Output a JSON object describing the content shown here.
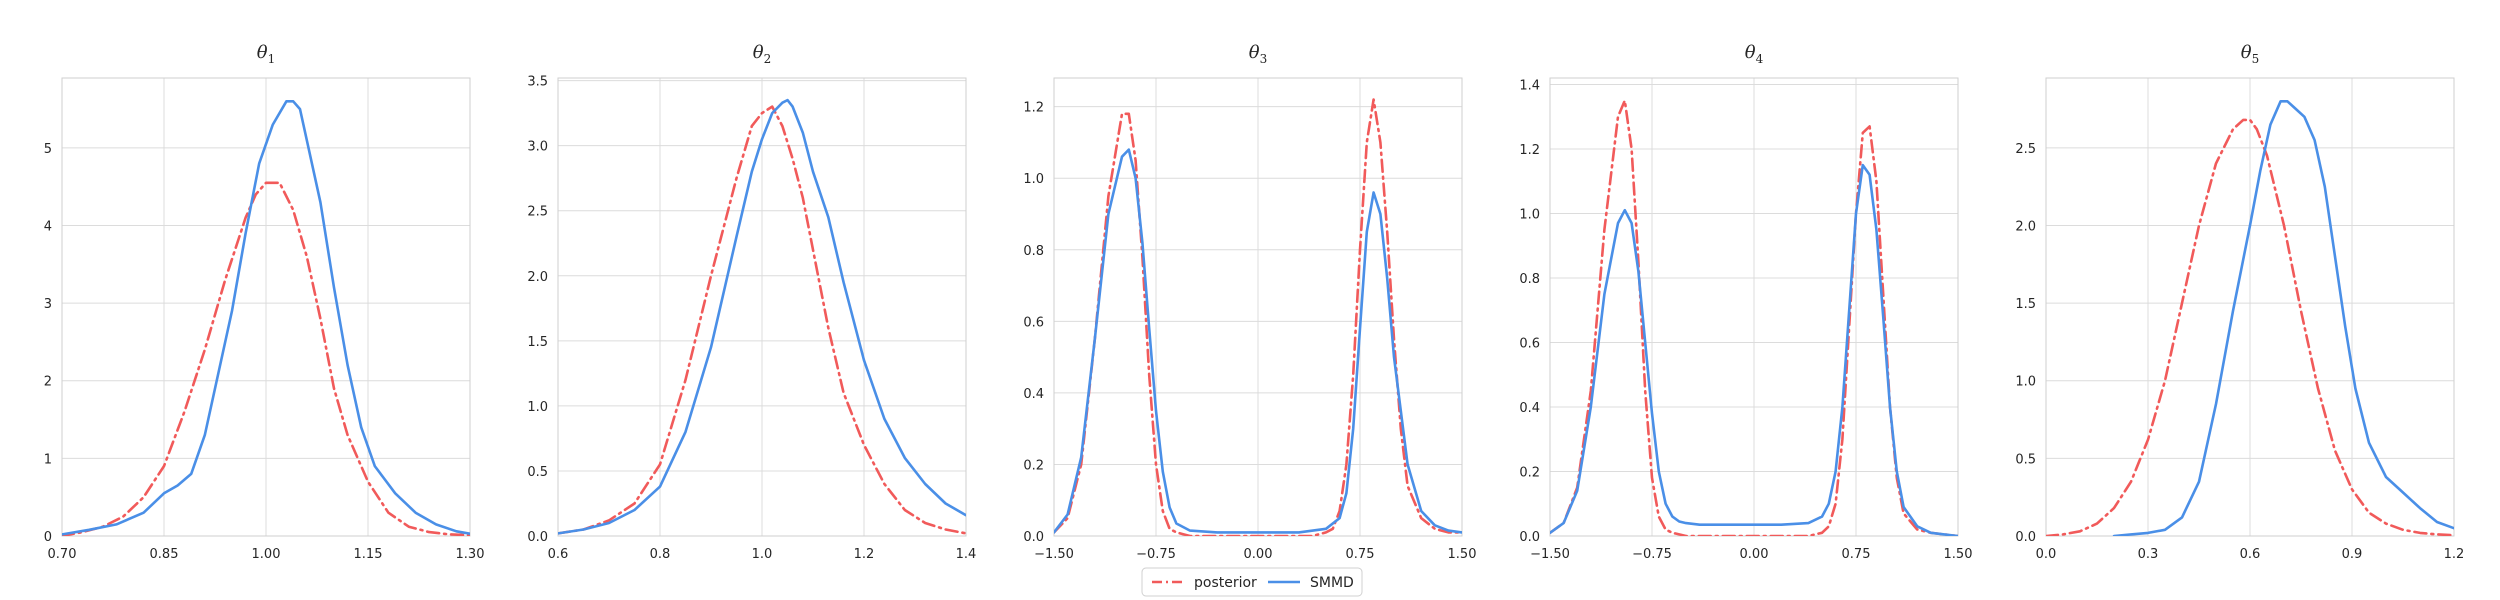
{
  "legend": {
    "position": "bottom-center",
    "entries": [
      "posterior",
      "SMMD"
    ]
  },
  "colors": {
    "posterior": "#f15a5a",
    "SMMD": "#4a8fe7",
    "grid": "#dcdcdc",
    "frame": "#cfcfcf"
  },
  "chart_data": [
    {
      "type": "line",
      "title": "θ",
      "title_sub": "1",
      "grid": true,
      "xlim": [
        0.7,
        1.3
      ],
      "ylim": [
        0,
        5.9
      ],
      "xticks": [
        0.7,
        0.85,
        1.0,
        1.15,
        1.3
      ],
      "xtick_labels": [
        "0.70",
        "0.85",
        "1.00",
        "1.15",
        "1.30"
      ],
      "yticks": [
        0,
        1,
        2,
        3,
        4,
        5
      ],
      "ytick_labels": [
        "0",
        "1",
        "2",
        "3",
        "4",
        "5"
      ],
      "series": [
        {
          "name": "posterior",
          "style": "dashdot",
          "x": [
            0.7,
            0.73,
            0.76,
            0.79,
            0.82,
            0.85,
            0.88,
            0.91,
            0.94,
            0.97,
            0.985,
            1.0,
            1.02,
            1.04,
            1.06,
            1.08,
            1.1,
            1.12,
            1.15,
            1.18,
            1.21,
            1.24,
            1.27,
            1.3
          ],
          "y": [
            0.0,
            0.05,
            0.12,
            0.25,
            0.5,
            0.9,
            1.6,
            2.4,
            3.3,
            4.1,
            4.4,
            4.55,
            4.55,
            4.2,
            3.6,
            2.8,
            1.9,
            1.3,
            0.7,
            0.3,
            0.12,
            0.05,
            0.02,
            0.01
          ]
        },
        {
          "name": "SMMD",
          "style": "solid",
          "x": [
            0.7,
            0.74,
            0.78,
            0.82,
            0.85,
            0.87,
            0.89,
            0.91,
            0.93,
            0.95,
            0.97,
            0.99,
            1.01,
            1.03,
            1.04,
            1.05,
            1.06,
            1.08,
            1.1,
            1.12,
            1.14,
            1.16,
            1.19,
            1.22,
            1.25,
            1.28,
            1.3
          ],
          "y": [
            0.02,
            0.08,
            0.15,
            0.3,
            0.55,
            0.65,
            0.8,
            1.3,
            2.1,
            2.9,
            3.9,
            4.8,
            5.3,
            5.6,
            5.6,
            5.5,
            5.1,
            4.3,
            3.2,
            2.2,
            1.4,
            0.9,
            0.55,
            0.3,
            0.15,
            0.06,
            0.03
          ]
        }
      ]
    },
    {
      "type": "line",
      "title": "θ",
      "title_sub": "2",
      "grid": true,
      "xlim": [
        0.6,
        1.4
      ],
      "ylim": [
        0,
        3.52
      ],
      "xticks": [
        0.6,
        0.8,
        1.0,
        1.2,
        1.4
      ],
      "xtick_labels": [
        "0.6",
        "0.8",
        "1.0",
        "1.2",
        "1.4"
      ],
      "yticks": [
        0,
        0.5,
        1.0,
        1.5,
        2.0,
        2.5,
        3.0,
        3.5
      ],
      "ytick_labels": [
        "0.0",
        "0.5",
        "1.0",
        "1.5",
        "2.0",
        "2.5",
        "3.0",
        "3.5"
      ],
      "series": [
        {
          "name": "posterior",
          "style": "dashdot",
          "x": [
            0.6,
            0.65,
            0.7,
            0.75,
            0.8,
            0.85,
            0.9,
            0.95,
            0.98,
            1.0,
            1.02,
            1.04,
            1.06,
            1.08,
            1.1,
            1.13,
            1.16,
            1.2,
            1.24,
            1.28,
            1.32,
            1.36,
            1.4
          ],
          "y": [
            0.02,
            0.05,
            0.12,
            0.25,
            0.55,
            1.2,
            2.0,
            2.75,
            3.15,
            3.25,
            3.3,
            3.15,
            2.9,
            2.6,
            2.2,
            1.6,
            1.1,
            0.7,
            0.4,
            0.2,
            0.1,
            0.05,
            0.02
          ]
        },
        {
          "name": "SMMD",
          "style": "solid",
          "x": [
            0.6,
            0.65,
            0.7,
            0.75,
            0.8,
            0.85,
            0.9,
            0.95,
            0.98,
            1.0,
            1.02,
            1.04,
            1.05,
            1.06,
            1.08,
            1.1,
            1.13,
            1.16,
            1.2,
            1.24,
            1.28,
            1.32,
            1.36,
            1.4
          ],
          "y": [
            0.02,
            0.05,
            0.1,
            0.2,
            0.38,
            0.8,
            1.45,
            2.3,
            2.8,
            3.05,
            3.25,
            3.33,
            3.35,
            3.3,
            3.1,
            2.8,
            2.45,
            1.95,
            1.35,
            0.9,
            0.6,
            0.4,
            0.25,
            0.16
          ]
        }
      ]
    },
    {
      "type": "line",
      "title": "θ",
      "title_sub": "3",
      "grid": true,
      "xlim": [
        -1.5,
        1.5
      ],
      "ylim": [
        0,
        1.28
      ],
      "xticks": [
        -1.5,
        -0.75,
        0,
        0.75,
        1.5
      ],
      "xtick_labels": [
        "−1.50",
        "−0.75",
        "0.00",
        "0.75",
        "1.50"
      ],
      "yticks": [
        0,
        0.2,
        0.4,
        0.6,
        0.8,
        1.0,
        1.2
      ],
      "ytick_labels": [
        "0.0",
        "0.2",
        "0.4",
        "0.6",
        "0.8",
        "1.0",
        "1.2"
      ],
      "series": [
        {
          "name": "posterior",
          "style": "dashdot",
          "x": [
            -1.5,
            -1.4,
            -1.3,
            -1.2,
            -1.1,
            -1.0,
            -0.95,
            -0.9,
            -0.85,
            -0.8,
            -0.75,
            -0.7,
            -0.65,
            -0.6,
            -0.55,
            -0.5,
            -0.4,
            -0.2,
            0.0,
            0.2,
            0.4,
            0.5,
            0.55,
            0.6,
            0.65,
            0.7,
            0.75,
            0.8,
            0.85,
            0.9,
            0.95,
            1.0,
            1.05,
            1.1,
            1.2,
            1.3,
            1.4,
            1.5
          ],
          "y": [
            0.01,
            0.05,
            0.2,
            0.55,
            0.95,
            1.18,
            1.18,
            1.05,
            0.78,
            0.45,
            0.2,
            0.07,
            0.02,
            0.01,
            0.005,
            0,
            0,
            0,
            0,
            0,
            0,
            0.01,
            0.02,
            0.07,
            0.2,
            0.45,
            0.8,
            1.1,
            1.22,
            1.1,
            0.85,
            0.55,
            0.3,
            0.14,
            0.05,
            0.02,
            0.01,
            0.01
          ]
        },
        {
          "name": "SMMD",
          "style": "solid",
          "x": [
            -1.5,
            -1.4,
            -1.3,
            -1.2,
            -1.1,
            -1.0,
            -0.95,
            -0.9,
            -0.85,
            -0.8,
            -0.75,
            -0.7,
            -0.65,
            -0.6,
            -0.5,
            -0.3,
            0.0,
            0.3,
            0.5,
            0.6,
            0.65,
            0.7,
            0.75,
            0.8,
            0.85,
            0.9,
            0.95,
            1.0,
            1.1,
            1.2,
            1.3,
            1.4,
            1.5
          ],
          "y": [
            0.01,
            0.06,
            0.22,
            0.55,
            0.9,
            1.06,
            1.08,
            1.0,
            0.82,
            0.58,
            0.35,
            0.18,
            0.08,
            0.035,
            0.015,
            0.01,
            0.01,
            0.01,
            0.02,
            0.05,
            0.12,
            0.3,
            0.58,
            0.85,
            0.96,
            0.9,
            0.72,
            0.5,
            0.2,
            0.07,
            0.03,
            0.015,
            0.01
          ]
        }
      ]
    },
    {
      "type": "line",
      "title": "θ",
      "title_sub": "4",
      "grid": true,
      "xlim": [
        -1.5,
        1.5
      ],
      "ylim": [
        0,
        1.42
      ],
      "xticks": [
        -1.5,
        -0.75,
        0,
        0.75,
        1.5
      ],
      "xtick_labels": [
        "−1.50",
        "−0.75",
        "0.00",
        "0.75",
        "1.50"
      ],
      "yticks": [
        0,
        0.2,
        0.4,
        0.6,
        0.8,
        1.0,
        1.2,
        1.4
      ],
      "ytick_labels": [
        "0.0",
        "0.2",
        "0.4",
        "0.6",
        "0.8",
        "1.0",
        "1.2",
        "1.4"
      ],
      "series": [
        {
          "name": "posterior",
          "style": "dashdot",
          "x": [
            -1.5,
            -1.4,
            -1.3,
            -1.2,
            -1.1,
            -1.0,
            -0.95,
            -0.9,
            -0.85,
            -0.8,
            -0.75,
            -0.7,
            -0.65,
            -0.6,
            -0.55,
            -0.5,
            -0.4,
            -0.2,
            0.0,
            0.2,
            0.4,
            0.5,
            0.55,
            0.6,
            0.65,
            0.7,
            0.75,
            0.8,
            0.85,
            0.9,
            0.95,
            1.0,
            1.05,
            1.1,
            1.2,
            1.3,
            1.4,
            1.5
          ],
          "y": [
            0.01,
            0.04,
            0.15,
            0.45,
            0.95,
            1.3,
            1.35,
            1.2,
            0.85,
            0.45,
            0.18,
            0.06,
            0.02,
            0.01,
            0.005,
            0,
            0,
            0,
            0,
            0,
            0,
            0.01,
            0.03,
            0.1,
            0.3,
            0.65,
            1.0,
            1.25,
            1.27,
            1.1,
            0.75,
            0.4,
            0.18,
            0.07,
            0.02,
            0.01,
            0.005,
            0
          ]
        },
        {
          "name": "SMMD",
          "style": "solid",
          "x": [
            -1.5,
            -1.4,
            -1.3,
            -1.2,
            -1.1,
            -1.0,
            -0.95,
            -0.9,
            -0.85,
            -0.8,
            -0.75,
            -0.7,
            -0.65,
            -0.6,
            -0.55,
            -0.5,
            -0.4,
            -0.2,
            0.0,
            0.2,
            0.4,
            0.5,
            0.55,
            0.6,
            0.65,
            0.7,
            0.75,
            0.8,
            0.85,
            0.9,
            0.95,
            1.0,
            1.05,
            1.1,
            1.2,
            1.3,
            1.4,
            1.5
          ],
          "y": [
            0.01,
            0.04,
            0.14,
            0.4,
            0.75,
            0.97,
            1.01,
            0.97,
            0.82,
            0.6,
            0.38,
            0.2,
            0.1,
            0.06,
            0.045,
            0.04,
            0.035,
            0.035,
            0.035,
            0.035,
            0.04,
            0.06,
            0.1,
            0.2,
            0.4,
            0.7,
            1.0,
            1.15,
            1.12,
            0.95,
            0.68,
            0.4,
            0.2,
            0.09,
            0.03,
            0.01,
            0.005,
            0
          ]
        }
      ]
    },
    {
      "type": "line",
      "title": "θ",
      "title_sub": "5",
      "grid": true,
      "xlim": [
        0.0,
        1.2
      ],
      "ylim": [
        0,
        2.95
      ],
      "xticks": [
        0.0,
        0.3,
        0.6,
        0.9,
        1.2
      ],
      "xtick_labels": [
        "0.0",
        "0.3",
        "0.6",
        "0.9",
        "1.2"
      ],
      "yticks": [
        0,
        0.5,
        1.0,
        1.5,
        2.0,
        2.5
      ],
      "ytick_labels": [
        "0.0",
        "0.5",
        "1.0",
        "1.5",
        "2.0",
        "2.5"
      ],
      "series": [
        {
          "name": "posterior",
          "style": "dashdot",
          "x": [
            0.0,
            0.05,
            0.1,
            0.15,
            0.2,
            0.25,
            0.3,
            0.35,
            0.4,
            0.45,
            0.5,
            0.55,
            0.58,
            0.6,
            0.62,
            0.65,
            0.7,
            0.75,
            0.8,
            0.85,
            0.9,
            0.95,
            1.0,
            1.05,
            1.1,
            1.15,
            1.2
          ],
          "y": [
            0.0,
            0.01,
            0.03,
            0.08,
            0.18,
            0.35,
            0.62,
            1.0,
            1.5,
            2.0,
            2.4,
            2.62,
            2.68,
            2.68,
            2.62,
            2.45,
            2.0,
            1.45,
            0.95,
            0.55,
            0.3,
            0.15,
            0.08,
            0.04,
            0.02,
            0.01,
            0.005
          ]
        },
        {
          "name": "SMMD",
          "style": "solid",
          "x": [
            0.2,
            0.25,
            0.3,
            0.35,
            0.4,
            0.45,
            0.5,
            0.55,
            0.6,
            0.63,
            0.66,
            0.69,
            0.71,
            0.73,
            0.76,
            0.79,
            0.82,
            0.85,
            0.88,
            0.91,
            0.95,
            1.0,
            1.05,
            1.1,
            1.15,
            1.2
          ],
          "y": [
            0.0,
            0.01,
            0.02,
            0.04,
            0.12,
            0.35,
            0.85,
            1.45,
            2.0,
            2.35,
            2.65,
            2.8,
            2.8,
            2.76,
            2.7,
            2.55,
            2.25,
            1.8,
            1.35,
            0.95,
            0.6,
            0.38,
            0.28,
            0.18,
            0.09,
            0.05
          ]
        }
      ]
    }
  ]
}
